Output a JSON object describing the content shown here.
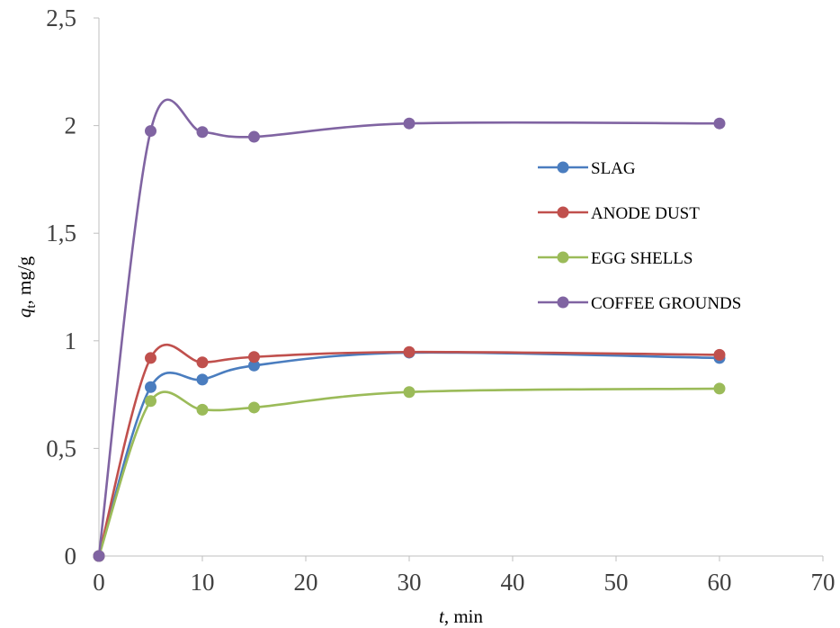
{
  "chart_data": {
    "type": "line",
    "xlabel": {
      "var": "t",
      "rest": ", min"
    },
    "ylabel": {
      "var": "q",
      "sub": "t",
      "rest": ", mg/g"
    },
    "xlim": [
      0,
      70
    ],
    "ylim": [
      0,
      2.5
    ],
    "xticks": [
      "0",
      "10",
      "20",
      "30",
      "40",
      "50",
      "60",
      "70"
    ],
    "yticks": [
      "0",
      "0,5",
      "1",
      "1,5",
      "2",
      "2,5"
    ],
    "grid": false,
    "legend_position": "right",
    "smooth": true,
    "x": [
      0,
      5,
      10,
      15,
      30,
      60
    ],
    "series": [
      {
        "name": "SLAG",
        "color": "#4a7dbf",
        "values": [
          0,
          0.785,
          0.82,
          0.885,
          0.945,
          0.92
        ]
      },
      {
        "name": "ANODE DUST",
        "color": "#c0504d",
        "values": [
          0,
          0.92,
          0.9,
          0.925,
          0.948,
          0.935
        ]
      },
      {
        "name": "EGG SHELLS",
        "color": "#9bbb59",
        "values": [
          0,
          0.72,
          0.68,
          0.69,
          0.762,
          0.778
        ]
      },
      {
        "name": "COFFEE GROUNDS",
        "color": "#8064a2",
        "values": [
          0,
          1.975,
          1.97,
          1.948,
          2.01,
          2.01
        ]
      }
    ]
  }
}
